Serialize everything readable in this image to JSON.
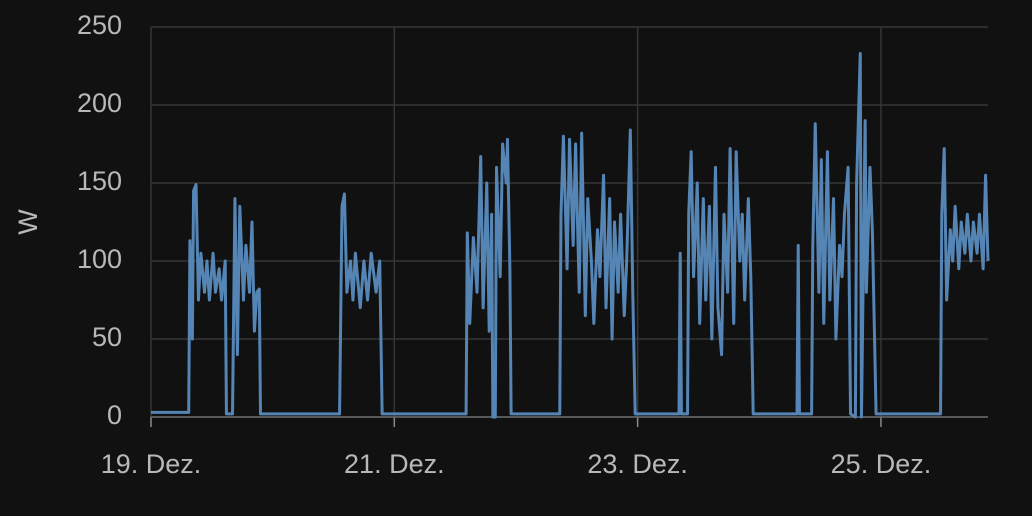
{
  "chart_data": {
    "type": "line",
    "y_label": "W",
    "x": [
      19.0,
      19.31,
      19.32,
      19.34,
      19.35,
      19.37,
      19.39,
      19.41,
      19.44,
      19.46,
      19.48,
      19.51,
      19.53,
      19.56,
      19.58,
      19.61,
      19.62,
      19.67,
      19.69,
      19.71,
      19.73,
      19.76,
      19.78,
      19.81,
      19.83,
      19.85,
      19.87,
      19.89,
      19.9,
      20.55,
      20.57,
      20.59,
      20.61,
      20.64,
      20.66,
      20.68,
      20.72,
      20.75,
      20.78,
      20.81,
      20.85,
      20.88,
      20.9,
      21.59,
      21.6,
      21.62,
      21.65,
      21.68,
      21.71,
      21.73,
      21.76,
      21.78,
      21.8,
      21.81,
      21.83,
      21.84,
      21.87,
      21.89,
      21.92,
      21.93,
      21.95,
      21.96,
      22.36,
      22.37,
      22.39,
      22.42,
      22.44,
      22.47,
      22.49,
      22.52,
      22.54,
      22.57,
      22.59,
      22.62,
      22.64,
      22.67,
      22.69,
      22.72,
      22.74,
      22.77,
      22.79,
      22.81,
      22.84,
      22.86,
      22.89,
      22.91,
      22.94,
      22.96,
      22.98,
      23.34,
      23.35,
      23.36,
      23.41,
      23.42,
      23.44,
      23.46,
      23.49,
      23.51,
      23.54,
      23.56,
      23.59,
      23.61,
      23.64,
      23.66,
      23.69,
      23.71,
      23.74,
      23.76,
      23.79,
      23.81,
      23.84,
      23.86,
      23.88,
      23.91,
      23.93,
      23.95,
      24.31,
      24.32,
      24.33,
      24.43,
      24.44,
      24.46,
      24.49,
      24.51,
      24.53,
      24.56,
      24.58,
      24.61,
      24.63,
      24.66,
      24.68,
      24.7,
      24.73,
      24.75,
      24.79,
      24.8,
      24.83,
      24.84,
      24.87,
      24.88,
      24.91,
      24.93,
      24.96,
      25.49,
      25.5,
      25.52,
      25.54,
      25.57,
      25.59,
      25.61,
      25.64,
      25.66,
      25.69,
      25.71,
      25.74,
      25.76,
      25.79,
      25.81,
      25.84,
      25.86,
      25.88
    ],
    "series": [
      {
        "color": "#5585b5",
        "values": [
          3,
          3,
          113,
          50,
          145,
          149,
          75,
          105,
          80,
          100,
          75,
          105,
          80,
          95,
          75,
          100,
          2,
          2,
          140,
          40,
          135,
          75,
          110,
          80,
          125,
          55,
          80,
          82,
          2,
          2,
          135,
          143,
          80,
          100,
          75,
          105,
          70,
          100,
          75,
          105,
          80,
          100,
          2,
          2,
          118,
          60,
          115,
          80,
          167,
          70,
          150,
          55,
          130,
          0,
          0,
          160,
          90,
          175,
          150,
          178,
          95,
          2,
          2,
          130,
          180,
          95,
          178,
          110,
          175,
          80,
          182,
          65,
          140,
          100,
          60,
          120,
          90,
          155,
          70,
          140,
          50,
          125,
          80,
          130,
          65,
          100,
          184,
          80,
          2,
          2,
          105,
          2,
          2,
          130,
          170,
          90,
          150,
          60,
          140,
          75,
          135,
          50,
          160,
          70,
          40,
          130,
          80,
          172,
          60,
          170,
          100,
          130,
          75,
          140,
          90,
          2,
          2,
          110,
          2,
          2,
          110,
          188,
          80,
          165,
          60,
          170,
          75,
          140,
          50,
          110,
          90,
          130,
          160,
          2,
          0,
          150,
          233,
          0,
          190,
          80,
          160,
          118,
          2,
          2,
          130,
          172,
          75,
          120,
          100,
          135,
          95,
          125,
          105,
          130,
          100,
          125,
          105,
          130,
          95,
          155,
          100
        ]
      }
    ],
    "xlim": [
      19,
      25.88
    ],
    "xticks": [
      {
        "value": 19,
        "label": "19. Dez."
      },
      {
        "value": 21,
        "label": "21. Dez."
      },
      {
        "value": 23,
        "label": "23. Dez."
      },
      {
        "value": 25,
        "label": "25. Dez."
      }
    ],
    "ylim": [
      0,
      250
    ],
    "yticks": [
      0,
      50,
      100,
      150,
      200,
      250
    ],
    "grid": true
  }
}
